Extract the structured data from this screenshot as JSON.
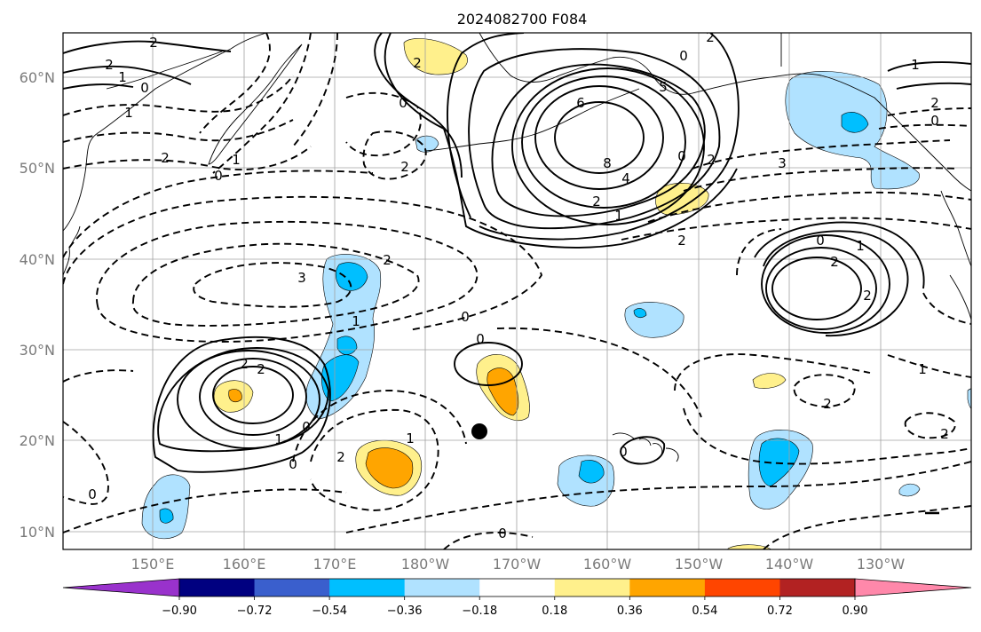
{
  "title": "2024082700 F084",
  "lat_labels": [
    "60°N",
    "50°N",
    "40°N",
    "30°N",
    "20°N",
    "10°N"
  ],
  "lon_labels": [
    "150°E",
    "160°E",
    "170°E",
    "180°W",
    "170°W",
    "160°W",
    "150°W",
    "140°W",
    "130°W"
  ],
  "colorbar": {
    "tick_labels": [
      "−0.90",
      "−0.72",
      "−0.54",
      "−0.36",
      "−0.18",
      "0.18",
      "0.36",
      "0.54",
      "0.72",
      "0.90"
    ],
    "colors": [
      "#9932cc",
      "#000080",
      "#3a5fcd",
      "#00bfff",
      "#b0e2ff",
      "#ffffff",
      "#fff08c",
      "#ffa500",
      "#ff4500",
      "#b22222",
      "#ff88aa"
    ]
  },
  "contour_labels": {
    "high_n_8": "8",
    "high_n_6": "6",
    "high_n_5": "5",
    "high_n_4": "4",
    "high_n_2": "2",
    "high_n_1": "1",
    "high_n_0": "0",
    "nw_2a": "2",
    "nw_2b": "2",
    "nw_1": "1",
    "nw_0": "0",
    "w_1": "1",
    "w_2": "2",
    "w_0": "0",
    "w_1b": "1",
    "mid_2": "2",
    "mid_0": "0",
    "mid_3": "3",
    "mid_1": "1",
    "mid_0b": "0",
    "mid_2b": "2",
    "ne_1": "1",
    "ne_2": "2",
    "ne_0": "0",
    "ne_2b": "2",
    "ne_3": "3",
    "e_0": "0",
    "e_1": "1",
    "e_2": "2",
    "e_2b": "2",
    "se_1": "1",
    "se_2": "2",
    "se_2b": "2",
    "sw_2a": "2",
    "sw_2b": "2",
    "sw_1": "1",
    "sw_0": "0",
    "sw_0b": "0",
    "s_2": "2",
    "s_1": "1",
    "s_0": "0",
    "s_0b": "0",
    "s_0c": "0",
    "s_0d": "0",
    "top_2": "2",
    "top_0": "0",
    "top_2b": "2",
    "top_2c": "2"
  },
  "marker": "typhoon-position-dot"
}
